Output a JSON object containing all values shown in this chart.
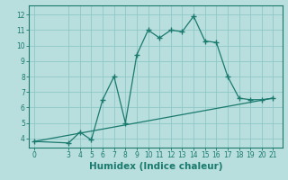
{
  "line1_x": [
    0,
    3,
    4,
    5,
    6,
    7,
    8,
    9,
    10,
    11,
    12,
    13,
    14,
    15,
    16,
    17,
    18,
    19,
    20,
    21
  ],
  "line1_y": [
    3.8,
    3.7,
    4.4,
    3.9,
    6.5,
    8.0,
    5.0,
    9.4,
    11.0,
    10.5,
    11.0,
    10.9,
    11.9,
    10.3,
    10.2,
    8.0,
    6.6,
    6.5,
    6.5,
    6.6
  ],
  "line2_x": [
    0,
    21
  ],
  "line2_y": [
    3.8,
    6.6
  ],
  "line_color": "#1a7a6e",
  "bg_color": "#b8dede",
  "grid_color": "#90c8c8",
  "xlabel": "Humidex (Indice chaleur)",
  "xticks": [
    0,
    3,
    4,
    5,
    6,
    7,
    8,
    9,
    10,
    11,
    12,
    13,
    14,
    15,
    16,
    17,
    18,
    19,
    20,
    21
  ],
  "yticks": [
    4,
    5,
    6,
    7,
    8,
    9,
    10,
    11,
    12
  ],
  "ylim": [
    3.4,
    12.6
  ],
  "xlim": [
    -0.5,
    21.8
  ],
  "tick_fontsize": 5.5,
  "xlabel_fontsize": 7.5,
  "marker_size": 4,
  "lw": 0.9
}
